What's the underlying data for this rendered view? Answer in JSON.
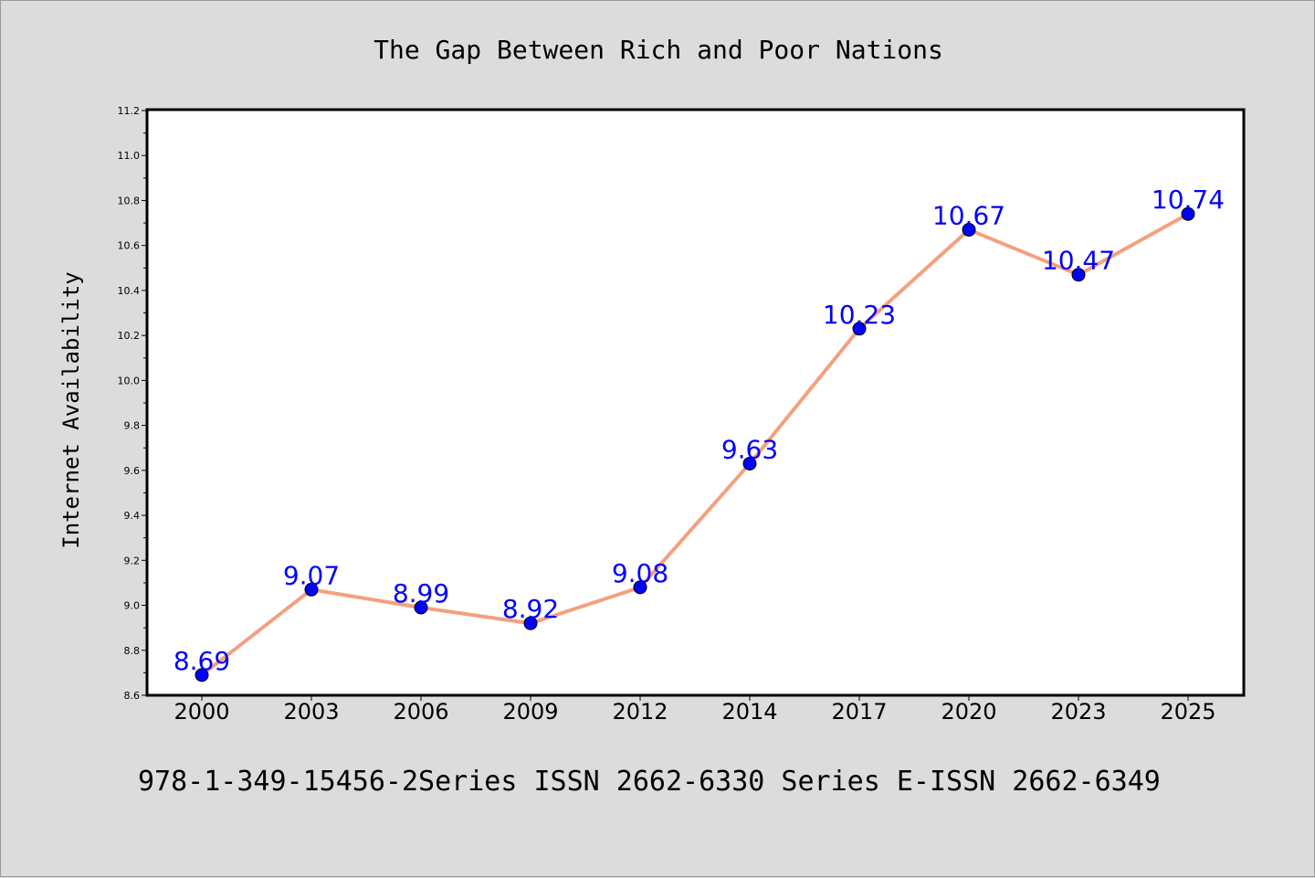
{
  "chart_data": {
    "type": "line",
    "title": "The Gap Between Rich and Poor Nations",
    "xlabel": "",
    "ylabel": "Internet Availability",
    "categories": [
      "2000",
      "2003",
      "2006",
      "2009",
      "2012",
      "2014",
      "2017",
      "2020",
      "2023",
      "2025"
    ],
    "series": [
      {
        "values": [
          8.69,
          9.07,
          8.99,
          8.92,
          9.08,
          9.63,
          10.23,
          10.67,
          10.47,
          10.74
        ],
        "labels": [
          "8.69",
          "9.07",
          "8.99",
          "8.92",
          "9.08",
          "9.63",
          "10.23",
          "10.67",
          "10.47",
          "10.74"
        ],
        "line_color": "#f4a07f",
        "marker_color": "#0000ff"
      }
    ],
    "ylim": [
      8.6,
      11.2
    ],
    "yticks": [
      "8.6",
      "8.8",
      "9.0",
      "9.2",
      "9.4",
      "9.6",
      "9.8",
      "10.0",
      "10.2",
      "10.4",
      "10.6",
      "10.8",
      "11.0",
      "11.2"
    ],
    "grid": false,
    "legend": "none"
  },
  "footer": {
    "text": "978-1-349-15456-2Series ISSN 2662-6330 Series E-ISSN 2662-6349"
  },
  "colors": {
    "background": "#dcdcdc",
    "plot_background": "#ffffff",
    "label": "#0000ff"
  }
}
